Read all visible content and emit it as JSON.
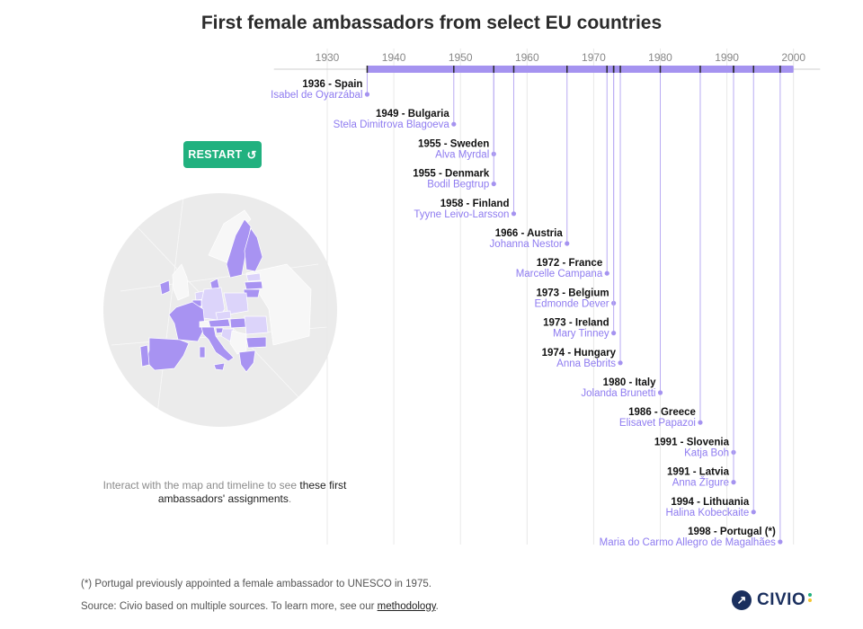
{
  "title": "First female ambassadors from select EU countries",
  "restart_label": "RESTART",
  "restart_icon": "restart-icon",
  "instructions": {
    "muted": "Interact with the map and timeline to see ",
    "highlight": "these first ambassadors' assignments",
    "end": "."
  },
  "footnote": "(*) Portugal previously appointed a female ambassador to UNESCO in 1975.",
  "source": {
    "prefix": "Source: Civio based on multiple sources. To learn more, see our ",
    "link_text": "methodology",
    "suffix": "."
  },
  "logo": {
    "text": "CIVIO",
    "icon": "external-link-icon",
    "dot_colors": [
      "#21b17f",
      "#f4c430"
    ]
  },
  "colors": {
    "accent": "#a593f0",
    "accent_line": "#b9abf3",
    "name_text": "#8e7bf0",
    "button": "#21b17f",
    "map_land": "#a893f2",
    "map_land_light": "#dcd4fa",
    "globe": "#ebebeb"
  },
  "chart_data": {
    "type": "timeline",
    "title": "First female ambassadors from select EU countries",
    "x_ticks": [
      1930,
      1940,
      1950,
      1960,
      1970,
      1980,
      1990,
      2000
    ],
    "x_range": [
      1922,
      2004
    ],
    "bar_range": [
      1936,
      2000
    ],
    "grid": true,
    "events": [
      {
        "year": 1936,
        "label": "1936 - Spain",
        "name": "Isabel de Oyarzábal"
      },
      {
        "year": 1949,
        "label": "1949 - Bulgaria",
        "name": "Stela Dimitrova Blagoeva"
      },
      {
        "year": 1955,
        "label": "1955 - Sweden",
        "name": "Alva Myrdal"
      },
      {
        "year": 1955,
        "label": "1955 - Denmark",
        "name": "Bodil Begtrup"
      },
      {
        "year": 1958,
        "label": "1958 - Finland",
        "name": "Tyyne Leivo-Larsson"
      },
      {
        "year": 1966,
        "label": "1966 - Austria",
        "name": "Johanna Nestor"
      },
      {
        "year": 1972,
        "label": "1972 - France",
        "name": "Marcelle Campana"
      },
      {
        "year": 1973,
        "label": "1973 - Belgium",
        "name": "Edmonde Dever"
      },
      {
        "year": 1973,
        "label": "1973 - Ireland",
        "name": "Mary Tinney"
      },
      {
        "year": 1974,
        "label": "1974 - Hungary",
        "name": "Anna Bebrits"
      },
      {
        "year": 1980,
        "label": "1980 - Italy",
        "name": "Jolanda Brunetti"
      },
      {
        "year": 1986,
        "label": "1986 - Greece",
        "name": "Elisavet Papazoi"
      },
      {
        "year": 1991,
        "label": "1991 - Slovenia",
        "name": "Katja Boh"
      },
      {
        "year": 1991,
        "label": "1991 - Latvia",
        "name": "Anna Žīgure"
      },
      {
        "year": 1994,
        "label": "1994 - Lithuania",
        "name": "Halina Kobeckaite"
      },
      {
        "year": 1998,
        "label": "1998 - Portugal (*)",
        "name": "Maria do Carmo Allegro de Magalhães"
      }
    ]
  }
}
